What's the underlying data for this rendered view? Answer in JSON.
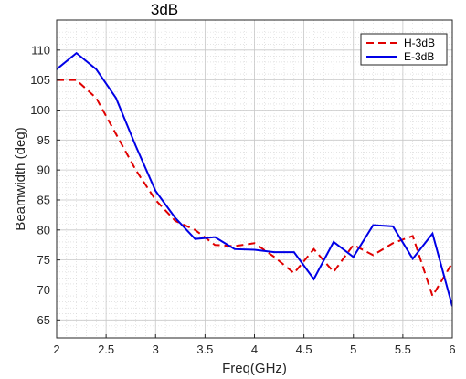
{
  "chart_data": {
    "type": "line",
    "title": "3dB",
    "xlabel": "Freq(GHz)",
    "ylabel": "Beamwidth (deg)",
    "xlim": [
      2,
      6
    ],
    "ylim": [
      62,
      115
    ],
    "x_ticks": [
      2,
      2.5,
      3,
      3.5,
      4,
      4.5,
      5,
      5.5,
      6
    ],
    "x_tick_labels": [
      "2",
      "2.5",
      "3",
      "3.5",
      "4",
      "4.5",
      "5",
      "5.5",
      "6"
    ],
    "y_ticks": [
      65,
      70,
      75,
      80,
      85,
      90,
      95,
      100,
      105,
      110
    ],
    "y_tick_labels": [
      "65",
      "70",
      "75",
      "80",
      "85",
      "90",
      "95",
      "100",
      "105",
      "110"
    ],
    "grid": true,
    "minor_grid": true,
    "legend_position": "top-right",
    "x": [
      2.0,
      2.2,
      2.4,
      2.6,
      2.8,
      3.0,
      3.2,
      3.4,
      3.6,
      3.8,
      4.0,
      4.2,
      4.4,
      4.6,
      4.8,
      5.0,
      5.2,
      5.4,
      5.6,
      5.8,
      6.0
    ],
    "series": [
      {
        "name": "H-3dB",
        "color": "#e00000",
        "style": "dashed",
        "values": [
          105.0,
          105.0,
          102.0,
          96.0,
          90.0,
          85.0,
          81.5,
          80.0,
          77.5,
          77.3,
          77.8,
          75.5,
          72.8,
          76.8,
          73.0,
          77.5,
          75.8,
          77.8,
          79.0,
          69.0,
          74.5
        ]
      },
      {
        "name": "E-3dB",
        "color": "#0000e6",
        "style": "solid",
        "values": [
          106.8,
          109.5,
          106.8,
          102.0,
          94.0,
          86.5,
          82.0,
          78.5,
          78.8,
          76.8,
          76.7,
          76.3,
          76.3,
          71.8,
          78.0,
          75.5,
          80.8,
          80.6,
          75.2,
          79.4,
          67.3
        ]
      }
    ]
  }
}
